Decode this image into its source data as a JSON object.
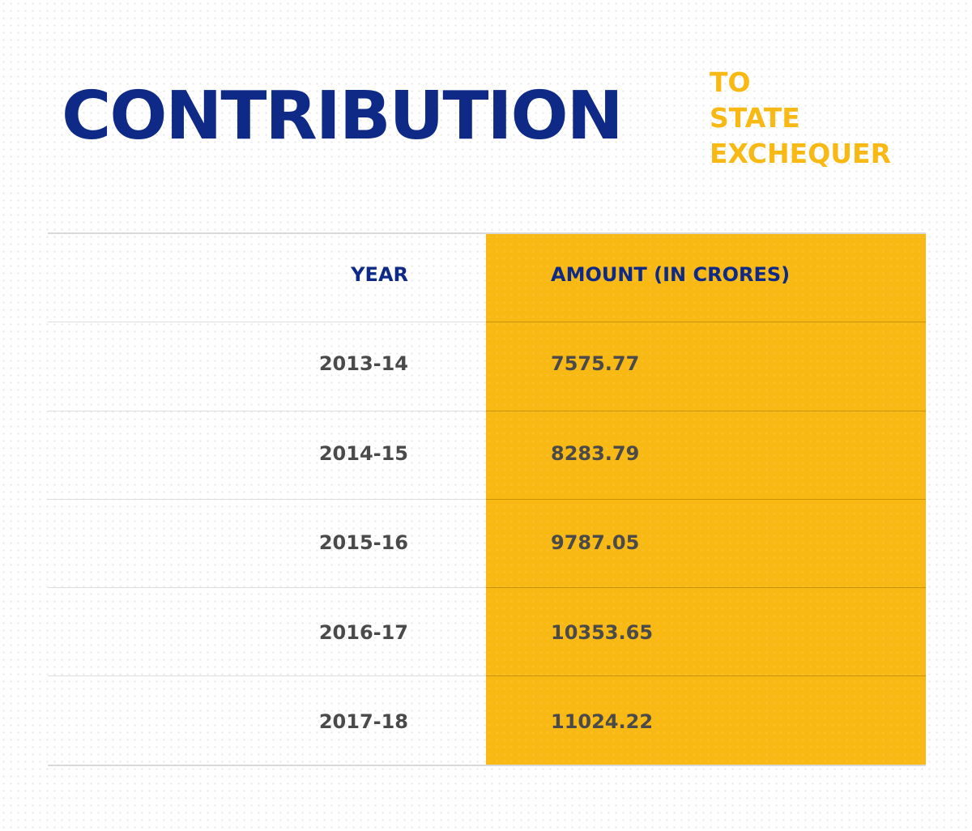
{
  "title": {
    "main": "CONTRIBUTION",
    "sub_line1": "TO",
    "sub_line2": "STATE",
    "sub_line3": "EXCHEQUER"
  },
  "colors": {
    "navy": "#0e2a86",
    "gold": "#f9b914",
    "text_gray": "#4a4a4a"
  },
  "chart_data": {
    "type": "table",
    "title": "CONTRIBUTION TO STATE EXCHEQUER",
    "columns": [
      "YEAR",
      "AMOUNT (IN CRORES)"
    ],
    "rows": [
      {
        "year": "2013-14",
        "amount": "7575.77"
      },
      {
        "year": "2014-15",
        "amount": "8283.79"
      },
      {
        "year": "2015-16",
        "amount": "9787.05"
      },
      {
        "year": "2016-17",
        "amount": "10353.65"
      },
      {
        "year": "2017-18",
        "amount": "11024.22"
      }
    ]
  }
}
